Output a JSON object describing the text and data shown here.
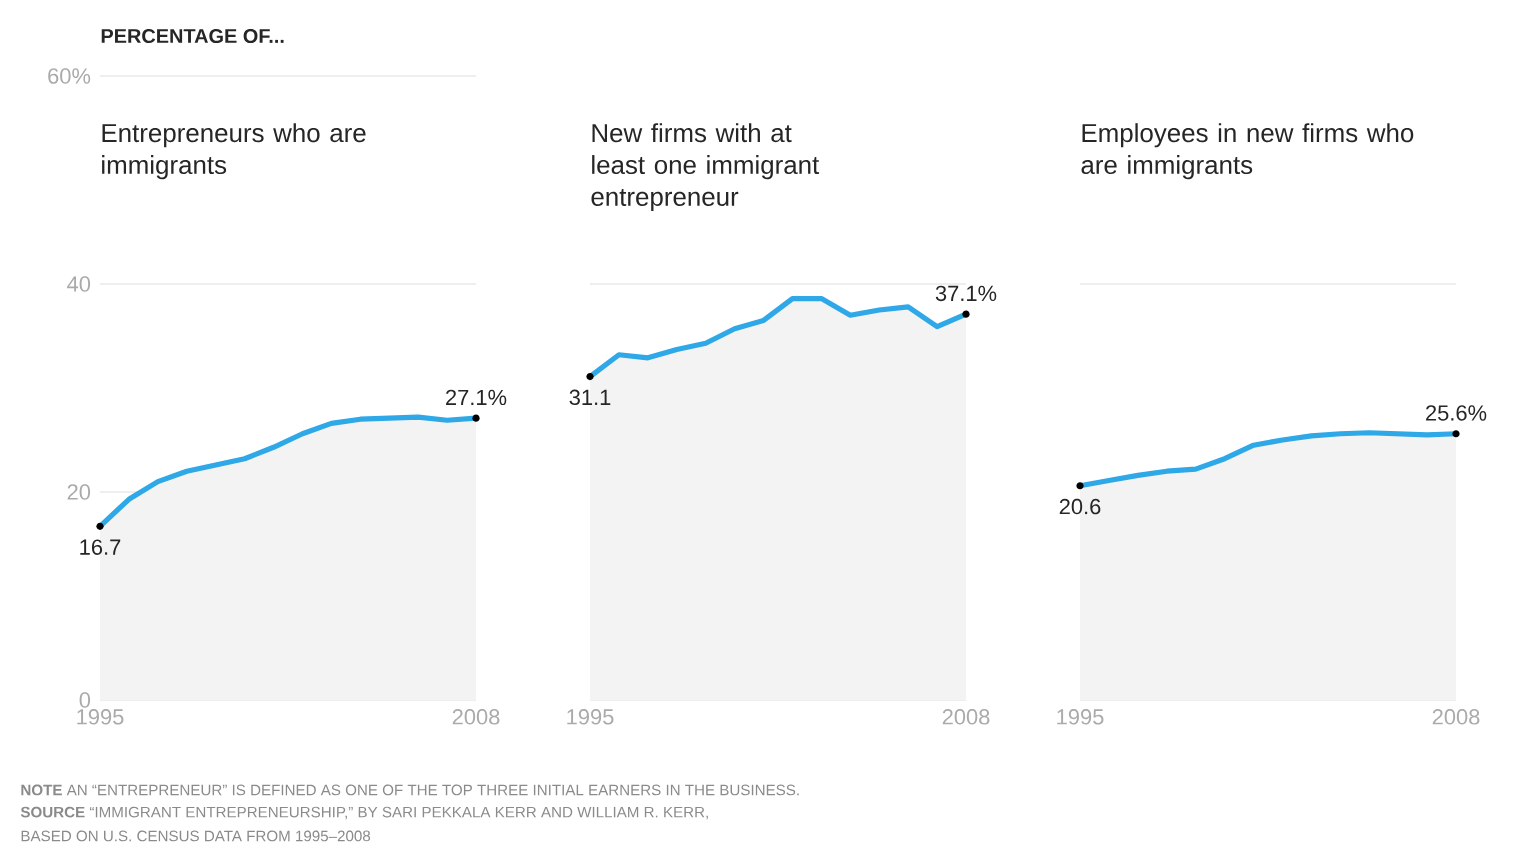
{
  "chart_data": [
    {
      "type": "area",
      "title": "PERCENTAGE OF...",
      "subtitle": "Entrepreneurs who are immigrants",
      "x": [
        1995,
        1996,
        1997,
        1998,
        1999,
        2000,
        2001,
        2002,
        2003,
        2004,
        2005,
        2006,
        2007,
        2008
      ],
      "xlim": [
        1995,
        2008
      ],
      "xticks": [
        1995,
        2008
      ],
      "ylim": [
        0,
        60
      ],
      "yticks": [
        0,
        20,
        40,
        {
          "value": 60,
          "label": "60%"
        }
      ],
      "grid": "y",
      "series": [
        {
          "color": "#2ea8e6",
          "values": [
            16.7,
            19.3,
            21.0,
            22.0,
            22.6,
            23.2,
            24.3,
            25.6,
            26.6,
            27.0,
            27.1,
            27.2,
            26.9,
            27.1
          ],
          "value_labels": [
            "16.7",
            null,
            null,
            null,
            null,
            null,
            null,
            null,
            null,
            null,
            null,
            null,
            null,
            "27.1%"
          ]
        }
      ],
      "annotations": [
        "**NOTE** AN “ENTREPRENEUR” IS DEFINED AS ONE OF THE TOP THREE INITIAL EARNERS IN THE BUSINESS.",
        "**SOURCE** “IMMIGRANT ENTREPRENEURSHIP,” BY SARI PEKKALA KERR AND WILLIAM R. KERR,",
        "BASED ON U.S. CENSUS DATA FROM 1995–2008"
      ]
    },
    {
      "type": "area",
      "subtitle": "New firms with at least one immigrant entrepreneur",
      "x": [
        1995,
        1996,
        1997,
        1998,
        1999,
        2000,
        2001,
        2002,
        2003,
        2004,
        2005,
        2006,
        2007,
        2008
      ],
      "xlim": [
        1995,
        2008
      ],
      "xticks": [
        1995,
        2008
      ],
      "ylim": [
        0,
        60
      ],
      "yticks": [
        0,
        20,
        40
      ],
      "grid": "y",
      "tick_labels": "x",
      "series": [
        {
          "color": "#2ea8e6",
          "values": [
            31.1,
            33.2,
            32.9,
            33.7,
            34.3,
            35.7,
            36.5,
            38.6,
            38.6,
            37.0,
            37.5,
            37.8,
            35.9,
            37.1
          ],
          "value_labels": [
            "31.1",
            null,
            null,
            null,
            null,
            null,
            null,
            null,
            null,
            null,
            null,
            null,
            null,
            "37.1%"
          ]
        }
      ]
    },
    {
      "type": "area",
      "subtitle": "Employees in new firms who are immigrants",
      "x": [
        1995,
        1996,
        1997,
        1998,
        1999,
        2000,
        2001,
        2002,
        2003,
        2004,
        2005,
        2006,
        2007,
        2008
      ],
      "xlim": [
        1995,
        2008
      ],
      "xticks": [
        1995,
        2008
      ],
      "ylim": [
        0,
        60
      ],
      "yticks": [
        0,
        20,
        40
      ],
      "grid": "y",
      "tick_labels": "x",
      "series": [
        {
          "color": "#2ea8e6",
          "values": [
            20.6,
            21.1,
            21.6,
            22.0,
            22.2,
            23.2,
            24.5,
            25.0,
            25.4,
            25.6,
            25.7,
            25.6,
            25.5,
            25.6
          ],
          "value_labels": [
            "20.6",
            null,
            null,
            null,
            null,
            null,
            null,
            null,
            null,
            null,
            null,
            null,
            null,
            "25.6%"
          ]
        }
      ]
    }
  ]
}
